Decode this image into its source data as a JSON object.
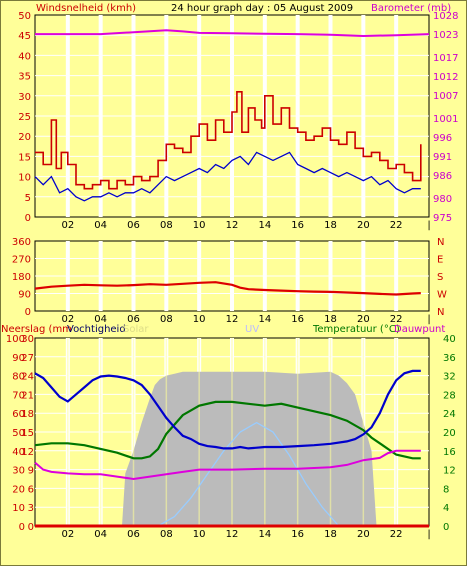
{
  "header": {
    "title": "24 hour graph day : 05 August 2009",
    "left_label": "Windsnelheid (kmh)",
    "right_label": "Barometer (mb)"
  },
  "colors": {
    "background": "#FFFF99",
    "plot_bg": "#FFFF99",
    "grid": "#FFFFFF",
    "wind_gust": "#CC0000",
    "wind_avg": "#0000CC",
    "barometer": "#DD00DD",
    "wind_dir": "#DD0000",
    "solar": "#BBBBBB",
    "uv": "#99CCFF",
    "temperature": "#0000CC",
    "humidity": "#007700",
    "dewpoint": "#DD00DD",
    "rain": "#DD0000",
    "left_axis_text": "#CC0000",
    "right_axis_text": "#CC00CC",
    "humidity_axis_text": "#007700"
  },
  "chart_data": [
    {
      "type": "line",
      "name_panel": "wind-barometer",
      "x_ticks": [
        "02",
        "04",
        "06",
        "08",
        "10",
        "12",
        "14",
        "16",
        "18",
        "20",
        "22"
      ],
      "left_axis": {
        "label": "Windsnelheid (kmh)",
        "min": 0,
        "max": 50,
        "ticks": [
          0,
          5,
          10,
          15,
          20,
          25,
          30,
          35,
          40,
          45,
          50
        ]
      },
      "right_axis": {
        "label": "Barometer (mb)",
        "min": 975,
        "max": 1028,
        "ticks": [
          975,
          980,
          986,
          991,
          996,
          1001,
          1007,
          1012,
          1017,
          1023,
          1028
        ]
      },
      "x_range": [
        0,
        24
      ],
      "series": [
        {
          "name": "Windsnelheid (kmh)",
          "style": "step",
          "axis": "left",
          "x": [
            0,
            0.5,
            1,
            1.3,
            1.6,
            2,
            2.5,
            3,
            3.5,
            4,
            4.5,
            5,
            5.5,
            6,
            6.5,
            7,
            7.5,
            8,
            8.5,
            9,
            9.5,
            10,
            10.5,
            11,
            11.5,
            12,
            12.3,
            12.6,
            13,
            13.4,
            13.8,
            14,
            14.5,
            15,
            15.5,
            16,
            16.5,
            17,
            17.5,
            18,
            18.5,
            19,
            19.5,
            20,
            20.5,
            21,
            21.5,
            22,
            22.5,
            23,
            23.5
          ],
          "y": [
            16,
            13,
            24,
            12,
            16,
            13,
            8,
            7,
            8,
            9,
            7,
            9,
            8,
            10,
            9,
            10,
            14,
            18,
            17,
            16,
            20,
            23,
            19,
            24,
            21,
            26,
            31,
            21,
            27,
            24,
            22,
            30,
            23,
            27,
            22,
            21,
            19,
            20,
            22,
            19,
            18,
            21,
            17,
            15,
            16,
            14,
            12,
            13,
            11,
            9,
            18
          ]
        },
        {
          "name": "Windsnelheid gemiddeld",
          "style": "line",
          "axis": "left",
          "x": [
            0,
            0.5,
            1,
            1.5,
            2,
            2.5,
            3,
            3.5,
            4,
            4.5,
            5,
            5.5,
            6,
            6.5,
            7,
            7.5,
            8,
            8.5,
            9,
            9.5,
            10,
            10.5,
            11,
            11.5,
            12,
            12.5,
            13,
            13.5,
            14,
            14.5,
            15,
            15.5,
            16,
            16.5,
            17,
            17.5,
            18,
            18.5,
            19,
            19.5,
            20,
            20.5,
            21,
            21.5,
            22,
            22.5,
            23,
            23.5
          ],
          "y": [
            10,
            8,
            10,
            6,
            7,
            5,
            4,
            5,
            5,
            6,
            5,
            6,
            6,
            7,
            6,
            8,
            10,
            9,
            10,
            11,
            12,
            11,
            13,
            12,
            14,
            15,
            13,
            16,
            15,
            14,
            15,
            16,
            13,
            12,
            11,
            12,
            11,
            10,
            11,
            10,
            9,
            10,
            8,
            9,
            7,
            6,
            7,
            7
          ]
        },
        {
          "name": "Barometer (mb)",
          "style": "line",
          "axis": "right",
          "x": [
            0,
            2,
            4,
            6,
            8,
            9,
            10,
            12,
            14,
            16,
            18,
            20,
            22,
            24
          ],
          "y": [
            1023,
            1023,
            1023,
            1023.5,
            1024,
            1023.7,
            1023.3,
            1023.2,
            1023.1,
            1023,
            1022.8,
            1022.5,
            1022.7,
            1023
          ]
        }
      ]
    },
    {
      "type": "line",
      "name_panel": "wind-direction",
      "x_ticks": [
        "02",
        "04",
        "06",
        "08",
        "10",
        "12",
        "14",
        "16",
        "18",
        "20",
        "22"
      ],
      "left_axis": {
        "min": 0,
        "max": 360,
        "ticks": [
          0,
          90,
          180,
          270,
          360
        ]
      },
      "right_axis": {
        "ticks": [
          "N",
          "E",
          "S",
          "W",
          "N"
        ]
      },
      "x_range": [
        0,
        24
      ],
      "series": [
        {
          "name": "Windrichting",
          "axis": "left",
          "x": [
            0,
            1,
            2,
            3,
            4,
            5,
            6,
            7,
            8,
            9,
            10,
            11,
            12,
            12.5,
            13,
            14,
            15,
            16,
            17,
            18,
            19,
            20,
            21,
            22,
            23,
            23.5
          ],
          "y": [
            115,
            125,
            130,
            135,
            132,
            130,
            133,
            138,
            135,
            140,
            145,
            148,
            135,
            120,
            112,
            108,
            105,
            102,
            100,
            98,
            95,
            92,
            88,
            85,
            90,
            92
          ]
        }
      ]
    },
    {
      "type": "line",
      "name_panel": "temperature-humidity",
      "x_ticks": [
        "02",
        "04",
        "06",
        "08",
        "10",
        "12",
        "14",
        "16",
        "18",
        "20",
        "22"
      ],
      "labels": {
        "rain": "Neerslag (mm",
        "humidity": "Vochtigheid",
        "solar": "Solar",
        "uv": "UV",
        "temperature": "Temperatuur (°C)",
        "dewpoint": "Dauwpunt"
      },
      "axes": {
        "humidity": {
          "min": 0,
          "max": 100,
          "ticks": [
            0,
            10,
            20,
            30,
            40,
            50,
            60,
            70,
            80,
            90,
            100
          ]
        },
        "rain": {
          "min": 0,
          "max": 30,
          "ticks": [
            0,
            3,
            6,
            9,
            12,
            15,
            18,
            21,
            24,
            27,
            30
          ]
        },
        "temperature": {
          "min": 0,
          "max": 40,
          "ticks": [
            0,
            4,
            8,
            12,
            16,
            20,
            24,
            28,
            32,
            36,
            40
          ]
        }
      },
      "x_range": [
        0,
        24
      ],
      "series": [
        {
          "name": "Solar",
          "axis": "humidity",
          "style": "area",
          "x": [
            5.3,
            5.5,
            6,
            6.5,
            7,
            7.3,
            7.6,
            8,
            8.5,
            9,
            10,
            12,
            14,
            16,
            18,
            18.5,
            19,
            19.5,
            20,
            20.5,
            20.8
          ],
          "y": [
            0,
            28,
            40,
            55,
            68,
            75,
            78,
            80,
            81,
            82,
            82,
            82,
            82,
            81,
            82,
            80,
            76,
            70,
            55,
            40,
            0
          ]
        },
        {
          "name": "UV",
          "axis": "temperature",
          "x": [
            7.5,
            8.5,
            9.5,
            10.5,
            11.5,
            12.5,
            13.5,
            14.5,
            15.5,
            16.5,
            17.5,
            18.5
          ],
          "y": [
            0,
            2,
            6,
            11,
            16,
            20,
            22,
            20,
            15,
            9,
            4,
            0
          ]
        },
        {
          "name": "Temperatuur (°C)",
          "axis": "temperature",
          "x": [
            0,
            0.5,
            1,
            1.5,
            2,
            2.5,
            3,
            3.5,
            4,
            4.5,
            5,
            5.5,
            6,
            6.5,
            7,
            7.5,
            8,
            8.5,
            9,
            9.5,
            10,
            10.5,
            11,
            11.5,
            12,
            12.5,
            13,
            14,
            15,
            16,
            17,
            18,
            19,
            19.5,
            20,
            20.5,
            21,
            21.5,
            22,
            22.5,
            23,
            23.5
          ],
          "y": [
            32.5,
            31.5,
            29.5,
            27.5,
            26.5,
            28,
            29.5,
            31,
            31.8,
            32,
            31.8,
            31.5,
            31,
            30,
            28,
            25.5,
            23,
            21,
            19.2,
            18.5,
            17.5,
            17,
            16.8,
            16.5,
            16.5,
            16.8,
            16.5,
            16.8,
            16.8,
            17,
            17.2,
            17.5,
            18,
            18.5,
            19.5,
            21,
            24,
            28,
            31,
            32.5,
            33,
            33
          ]
        },
        {
          "name": "Vochtigheid",
          "axis": "humidity",
          "x": [
            0,
            1,
            2,
            3,
            4,
            5,
            6,
            6.5,
            7,
            7.5,
            8,
            9,
            10,
            11,
            12,
            13,
            14,
            15,
            16,
            17,
            18,
            19,
            20,
            20.5,
            21,
            22,
            23,
            23.5
          ],
          "y": [
            43,
            44,
            44,
            43,
            41,
            39,
            36,
            36,
            37,
            41,
            49,
            59,
            64,
            66,
            66,
            65,
            64,
            65,
            63,
            61,
            59,
            56,
            51,
            47,
            44,
            38,
            36,
            36
          ]
        },
        {
          "name": "Dauwpunt",
          "axis": "temperature",
          "x": [
            0,
            0.5,
            1,
            2,
            3,
            4,
            5,
            6,
            7,
            8,
            9,
            10,
            12,
            14,
            16,
            18,
            19,
            20,
            21,
            21.5,
            22,
            23,
            23.5
          ],
          "y": [
            13.5,
            12,
            11.5,
            11.2,
            11,
            11,
            10.5,
            10,
            10.5,
            11,
            11.5,
            12,
            12,
            12.2,
            12.2,
            12.5,
            13,
            14,
            14.5,
            15.5,
            16,
            16,
            16
          ]
        },
        {
          "name": "Neerslag",
          "axis": "rain",
          "x": [
            0,
            24
          ],
          "y": [
            0,
            0
          ]
        }
      ]
    }
  ]
}
